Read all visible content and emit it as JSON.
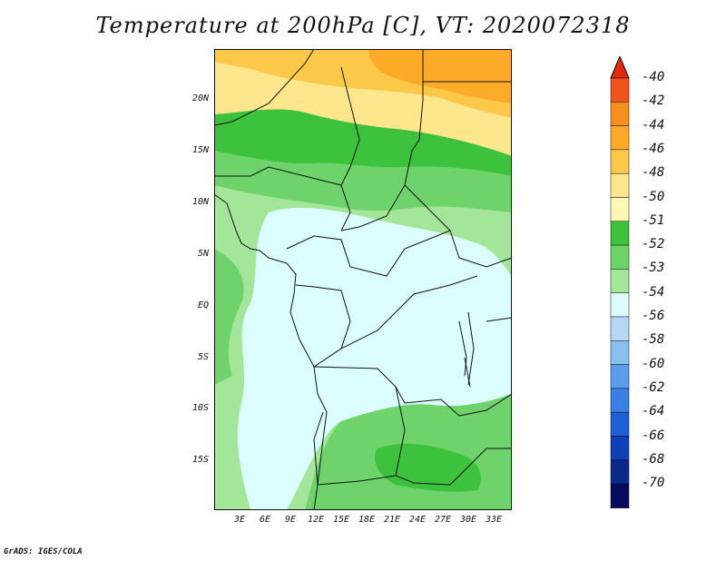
{
  "title": "Temperature at 200hPa [C], VT: 2020072318",
  "credit": "GrADS: IGES/COLA",
  "lat_ticks": [
    "20N",
    "15N",
    "10N",
    "5N",
    "EQ",
    "5S",
    "10S",
    "15S"
  ],
  "lon_ticks": [
    "3E",
    "6E",
    "9E",
    "12E",
    "15E",
    "18E",
    "21E",
    "24E",
    "27E",
    "30E",
    "33E"
  ],
  "legend": {
    "labels": [
      "-40",
      "-42",
      "-44",
      "-46",
      "-48",
      "-50",
      "-51",
      "-52",
      "-53",
      "-54",
      "-56",
      "-58",
      "-60",
      "-62",
      "-64",
      "-66",
      "-68",
      "-70"
    ],
    "colors": [
      "#e52a10",
      "#f0541a",
      "#f78e1e",
      "#fbab28",
      "#fcc84a",
      "#fde68c",
      "#fef7b6",
      "#3cc23c",
      "#6ed36a",
      "#a3e69a",
      "#dbfdfd",
      "#b4d8f5",
      "#8ac0ee",
      "#5b9cec",
      "#3a7fe6",
      "#1e5fd8",
      "#0e3fb8",
      "#0a2888",
      "#060d5e",
      "#d9d8f8"
    ]
  },
  "map_colors": {
    "orange_dark": "#fbab28",
    "orange": "#fcc84a",
    "yellow": "#fde68c",
    "green_dark": "#3cc23c",
    "green": "#6ed36a",
    "green_light": "#a3e69a",
    "cyan": "#dbfdfd"
  }
}
